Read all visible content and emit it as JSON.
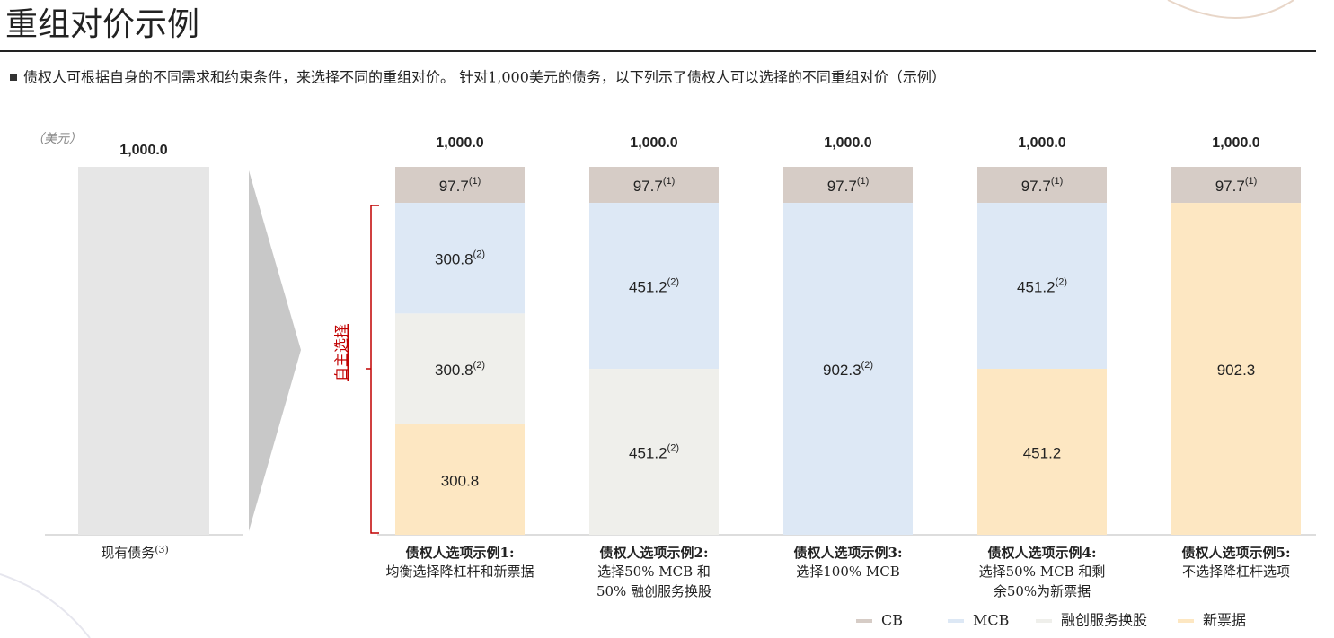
{
  "header": {
    "title": "重组对价示例",
    "subtitle": "债权人可根据自身的不同需求和约束条件，来选择不同的重组对价。 针对1,000美元的债务，以下列示了债权人可以选择的不同重组对价（示例）"
  },
  "chart_data": [
    {
      "type": "bar",
      "unit_label": "（美元）",
      "categories": [
        "现有债务"
      ],
      "category_notes": [
        "(3)"
      ],
      "values": [
        1000.0
      ],
      "value_labels": [
        "1,000.0"
      ],
      "color": "#e6e6e6"
    },
    {
      "type": "stacked_bar",
      "bracket_label": "自主选择",
      "categories": [
        {
          "title": "债权人选项示例1:",
          "desc": [
            "均衡选择降杠杆和新票据"
          ]
        },
        {
          "title": "债权人选项示例2:",
          "desc": [
            "选择50% MCB 和",
            "50% 融创服务换股"
          ]
        },
        {
          "title": "债权人选项示例3:",
          "desc": [
            "选择100% MCB"
          ]
        },
        {
          "title": "债权人选项示例4:",
          "desc": [
            "选择50% MCB 和剩",
            "余50%为新票据"
          ]
        },
        {
          "title": "债权人选项示例5:",
          "desc": [
            "不选择降杠杆选项"
          ]
        }
      ],
      "totals": [
        1000.0,
        1000.0,
        1000.0,
        1000.0,
        1000.0
      ],
      "total_labels": [
        "1,000.0",
        "1,000.0",
        "1,000.0",
        "1,000.0",
        "1,000.0"
      ],
      "series": [
        {
          "name": "CB",
          "color": "#d6ccc6",
          "values": [
            97.7,
            97.7,
            97.7,
            97.7,
            97.7
          ],
          "notes": [
            "(1)",
            "(1)",
            "(1)",
            "(1)",
            "(1)"
          ]
        },
        {
          "name": "MCB",
          "color": "#dde8f5",
          "values": [
            300.8,
            451.2,
            902.3,
            451.2,
            null
          ],
          "notes": [
            "(2)",
            "(2)",
            "(2)",
            "(2)",
            null
          ]
        },
        {
          "name": "融创服务换股",
          "color": "#efefeb",
          "values": [
            300.8,
            451.2,
            null,
            null,
            null
          ],
          "notes": [
            "(2)",
            "(2)",
            null,
            null,
            null
          ]
        },
        {
          "name": "新票据",
          "color": "#fde7c2",
          "values": [
            300.8,
            null,
            null,
            451.2,
            902.3
          ],
          "notes": [
            null,
            null,
            null,
            null,
            null
          ]
        }
      ]
    }
  ]
}
